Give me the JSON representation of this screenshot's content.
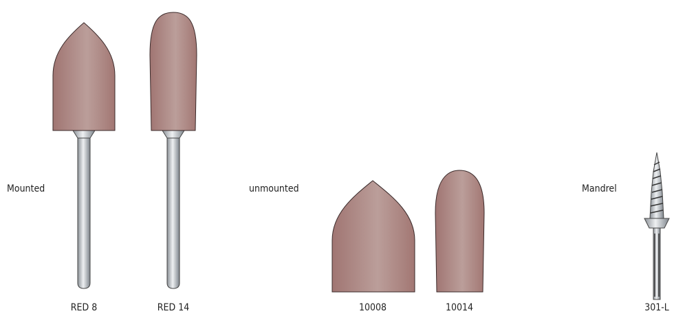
{
  "groups": [
    {
      "label": "Mounted",
      "items": [
        "RED 8",
        "RED 14"
      ]
    },
    {
      "label": "unmounted",
      "items": [
        "10008",
        "10014"
      ]
    },
    {
      "label": "Mandrel",
      "items": [
        "301-L"
      ]
    }
  ]
}
